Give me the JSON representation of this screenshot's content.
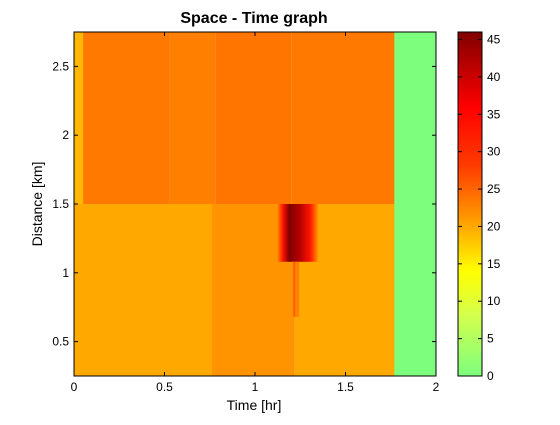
{
  "chart_data": {
    "type": "heatmap",
    "title": "Space - Time graph",
    "xlabel": "Time [hr]",
    "ylabel": "Distance [km]",
    "xlim": [
      0,
      2
    ],
    "ylim": [
      0.25,
      2.75
    ],
    "xticks": [
      {
        "value": 0,
        "label": "0"
      },
      {
        "value": 0.5,
        "label": "0.5"
      },
      {
        "value": 1,
        "label": "1"
      },
      {
        "value": 1.5,
        "label": "1.5"
      },
      {
        "value": 2,
        "label": "2"
      }
    ],
    "yticks": [
      {
        "value": 0.5,
        "label": "0.5"
      },
      {
        "value": 1,
        "label": "1"
      },
      {
        "value": 1.5,
        "label": "1.5"
      },
      {
        "value": 2,
        "label": "2"
      },
      {
        "value": 2.5,
        "label": "2.5"
      }
    ],
    "colorbar": {
      "range": [
        0,
        46
      ],
      "ticks": [
        {
          "value": 0,
          "label": "0"
        },
        {
          "value": 5,
          "label": "5"
        },
        {
          "value": 10,
          "label": "10"
        },
        {
          "value": 15,
          "label": "15"
        },
        {
          "value": 20,
          "label": "20"
        },
        {
          "value": 25,
          "label": "25"
        },
        {
          "value": 30,
          "label": "30"
        },
        {
          "value": 35,
          "label": "35"
        },
        {
          "value": 40,
          "label": "40"
        },
        {
          "value": 45,
          "label": "45"
        }
      ],
      "stops": [
        {
          "value": 0,
          "color": "#7dff7d"
        },
        {
          "value": 8,
          "color": "#d2ff4f"
        },
        {
          "value": 14,
          "color": "#ffff00"
        },
        {
          "value": 20,
          "color": "#ffa800"
        },
        {
          "value": 28,
          "color": "#ff3c00"
        },
        {
          "value": 36,
          "color": "#ff0000"
        },
        {
          "value": 46,
          "color": "#800000"
        }
      ]
    },
    "regions": [
      {
        "x": [
          0.0,
          0.05
        ],
        "y": [
          1.5,
          2.75
        ],
        "value": 19
      },
      {
        "x": [
          0.05,
          0.53
        ],
        "y": [
          1.5,
          2.75
        ],
        "value": 23.5
      },
      {
        "x": [
          0.53,
          0.78
        ],
        "y": [
          1.5,
          2.75
        ],
        "value": 23
      },
      {
        "x": [
          0.78,
          1.2
        ],
        "y": [
          1.5,
          2.75
        ],
        "value": 23.8
      },
      {
        "x": [
          1.2,
          1.8
        ],
        "y": [
          1.5,
          2.75
        ],
        "value": 23.5
      },
      {
        "x": [
          0.0,
          0.76
        ],
        "y": [
          0.25,
          1.5
        ],
        "value": 20
      },
      {
        "x": [
          0.76,
          1.22
        ],
        "y": [
          0.25,
          1.5
        ],
        "value": 21.5
      },
      {
        "x": [
          1.22,
          1.78
        ],
        "y": [
          0.25,
          1.5
        ],
        "value": 20
      },
      {
        "x": [
          1.77,
          2.0
        ],
        "y": [
          0.25,
          2.75
        ],
        "value": 0
      }
    ],
    "hotspots": [
      {
        "x": [
          1.12,
          1.35
        ],
        "y": [
          1.08,
          1.5
        ],
        "peak": 46,
        "base": 21
      },
      {
        "x": [
          1.205,
          1.245
        ],
        "y": [
          0.68,
          1.08
        ],
        "peak": 26,
        "base": 21
      }
    ]
  }
}
